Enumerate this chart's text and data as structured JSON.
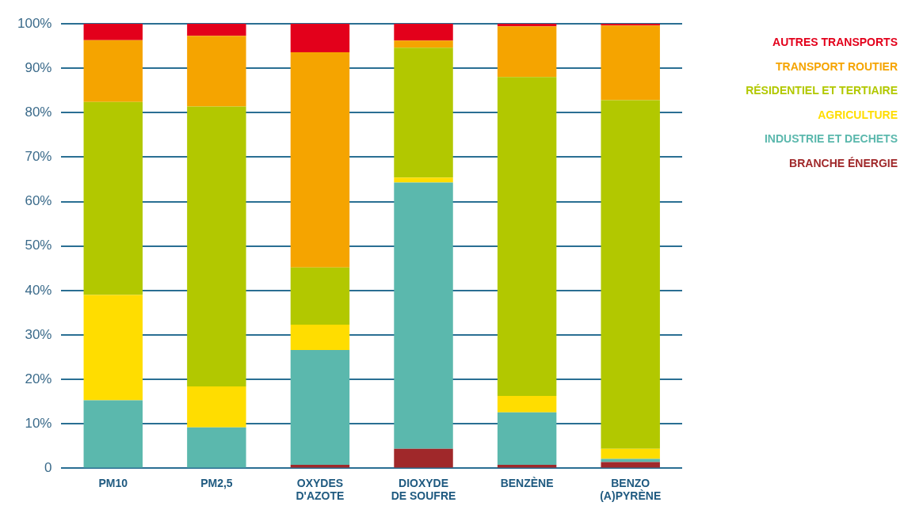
{
  "chart_data": {
    "type": "bar",
    "stacked": true,
    "categories": [
      "PM10",
      "PM2,5",
      "OXYDES D'AZOTE",
      "DIOXYDE DE SOUFRE",
      "BENZÈNE",
      "BENZO (A)PYRÈNE"
    ],
    "series": [
      {
        "name": "BRANCHE ÉNERGIE",
        "color": "#a0282a",
        "values": [
          0,
          0,
          0.8,
          4.4,
          0.8,
          1.4
        ]
      },
      {
        "name": "INDUSTRIE ET DECHETS",
        "color": "#5bb8ad",
        "values": [
          15.3,
          9.2,
          25.8,
          59.9,
          11.8,
          0.7
        ]
      },
      {
        "name": "AGRICULTURE",
        "color": "#ffdd00",
        "values": [
          23.7,
          9.2,
          5.7,
          1.1,
          3.7,
          2.3
        ]
      },
      {
        "name": "RÉSIDENTIEL ET TERTIAIRE",
        "color": "#b2c800",
        "values": [
          43.4,
          63.0,
          12.9,
          29.2,
          71.7,
          78.4
        ]
      },
      {
        "name": "TRANSPORT ROUTIER",
        "color": "#f5a400",
        "values": [
          13.9,
          15.9,
          48.4,
          1.6,
          11.4,
          16.8
        ]
      },
      {
        "name": "AUTRES TRANSPORTS",
        "color": "#e3001b",
        "values": [
          3.7,
          2.7,
          6.4,
          3.8,
          0.6,
          0.4
        ]
      }
    ],
    "ylim": [
      0,
      100
    ],
    "yticks": [
      {
        "value": 0,
        "label": "0"
      },
      {
        "value": 10,
        "label": "10%"
      },
      {
        "value": 20,
        "label": "20%"
      },
      {
        "value": 30,
        "label": "30%"
      },
      {
        "value": 40,
        "label": "40%"
      },
      {
        "value": 50,
        "label": "50%"
      },
      {
        "value": 60,
        "label": "60%"
      },
      {
        "value": 70,
        "label": "70%"
      },
      {
        "value": 80,
        "label": "80%"
      },
      {
        "value": 90,
        "label": "90%"
      },
      {
        "value": 100,
        "label": "100%"
      }
    ],
    "grid": "y",
    "legend": "top right"
  }
}
